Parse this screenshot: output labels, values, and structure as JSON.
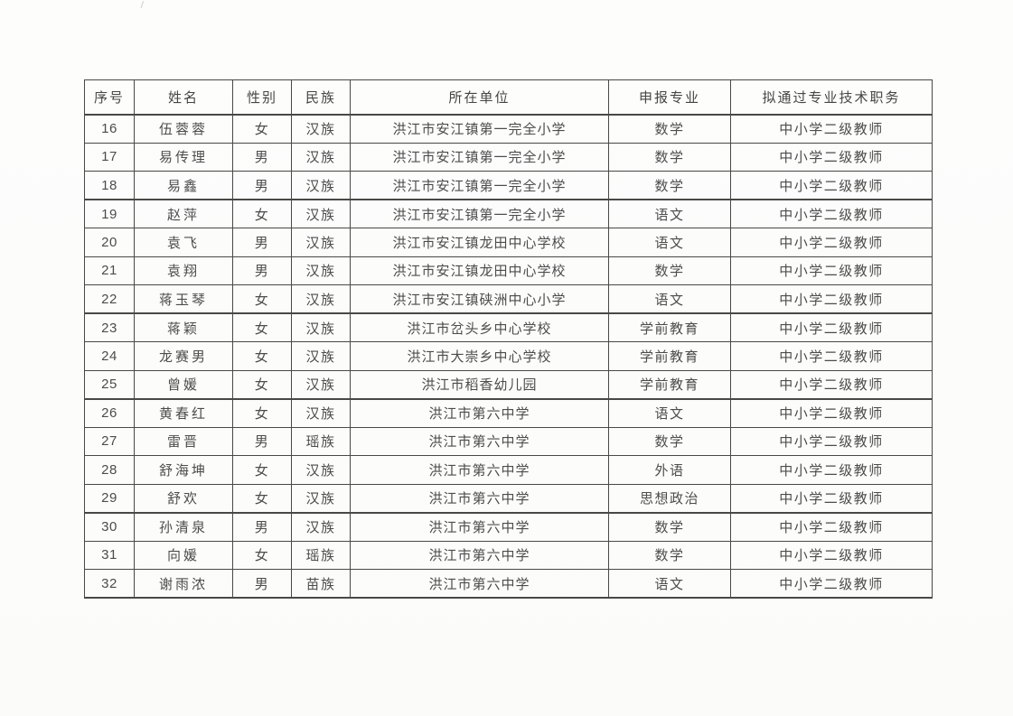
{
  "page": {
    "background_color": "#fdfdfc",
    "border_color": "#484846",
    "text_color": "#4c4c4c"
  },
  "table": {
    "headers": [
      "序号",
      "姓名",
      "性别",
      "民族",
      "所在单位",
      "申报专业",
      "拟通过专业技术职务"
    ],
    "rows": [
      {
        "serial": "16",
        "name": "伍蓉蓉",
        "gender": "女",
        "ethnicity": "汉族",
        "unit": "洪江市安江镇第一完全小学",
        "major": "数学",
        "title": "中小学二级教师"
      },
      {
        "serial": "17",
        "name": "易传理",
        "gender": "男",
        "ethnicity": "汉族",
        "unit": "洪江市安江镇第一完全小学",
        "major": "数学",
        "title": "中小学二级教师"
      },
      {
        "serial": "18",
        "name": "易鑫",
        "gender": "男",
        "ethnicity": "汉族",
        "unit": "洪江市安江镇第一完全小学",
        "major": "数学",
        "title": "中小学二级教师"
      },
      {
        "serial": "19",
        "name": "赵萍",
        "gender": "女",
        "ethnicity": "汉族",
        "unit": "洪江市安江镇第一完全小学",
        "major": "语文",
        "title": "中小学二级教师"
      },
      {
        "serial": "20",
        "name": "袁飞",
        "gender": "男",
        "ethnicity": "汉族",
        "unit": "洪江市安江镇龙田中心学校",
        "major": "语文",
        "title": "中小学二级教师"
      },
      {
        "serial": "21",
        "name": "袁翔",
        "gender": "男",
        "ethnicity": "汉族",
        "unit": "洪江市安江镇龙田中心学校",
        "major": "数学",
        "title": "中小学二级教师"
      },
      {
        "serial": "22",
        "name": "蒋玉琴",
        "gender": "女",
        "ethnicity": "汉族",
        "unit": "洪江市安江镇硖洲中心小学",
        "major": "语文",
        "title": "中小学二级教师"
      },
      {
        "serial": "23",
        "name": "蒋颖",
        "gender": "女",
        "ethnicity": "汉族",
        "unit": "洪江市岔头乡中心学校",
        "major": "学前教育",
        "title": "中小学二级教师"
      },
      {
        "serial": "24",
        "name": "龙赛男",
        "gender": "女",
        "ethnicity": "汉族",
        "unit": "洪江市大崇乡中心学校",
        "major": "学前教育",
        "title": "中小学二级教师"
      },
      {
        "serial": "25",
        "name": "曾媛",
        "gender": "女",
        "ethnicity": "汉族",
        "unit": "洪江市稻香幼儿园",
        "major": "学前教育",
        "title": "中小学二级教师"
      },
      {
        "serial": "26",
        "name": "黄春红",
        "gender": "女",
        "ethnicity": "汉族",
        "unit": "洪江市第六中学",
        "major": "语文",
        "title": "中小学二级教师"
      },
      {
        "serial": "27",
        "name": "雷晋",
        "gender": "男",
        "ethnicity": "瑶族",
        "unit": "洪江市第六中学",
        "major": "数学",
        "title": "中小学二级教师"
      },
      {
        "serial": "28",
        "name": "舒海坤",
        "gender": "女",
        "ethnicity": "汉族",
        "unit": "洪江市第六中学",
        "major": "外语",
        "title": "中小学二级教师"
      },
      {
        "serial": "29",
        "name": "舒欢",
        "gender": "女",
        "ethnicity": "汉族",
        "unit": "洪江市第六中学",
        "major": "思想政治",
        "title": "中小学二级教师"
      },
      {
        "serial": "30",
        "name": "孙清泉",
        "gender": "男",
        "ethnicity": "汉族",
        "unit": "洪江市第六中学",
        "major": "数学",
        "title": "中小学二级教师"
      },
      {
        "serial": "31",
        "name": "向媛",
        "gender": "女",
        "ethnicity": "瑶族",
        "unit": "洪江市第六中学",
        "major": "数学",
        "title": "中小学二级教师"
      },
      {
        "serial": "32",
        "name": "谢雨浓",
        "gender": "男",
        "ethnicity": "苗族",
        "unit": "洪江市第六中学",
        "major": "语文",
        "title": "中小学二级教师"
      }
    ]
  }
}
